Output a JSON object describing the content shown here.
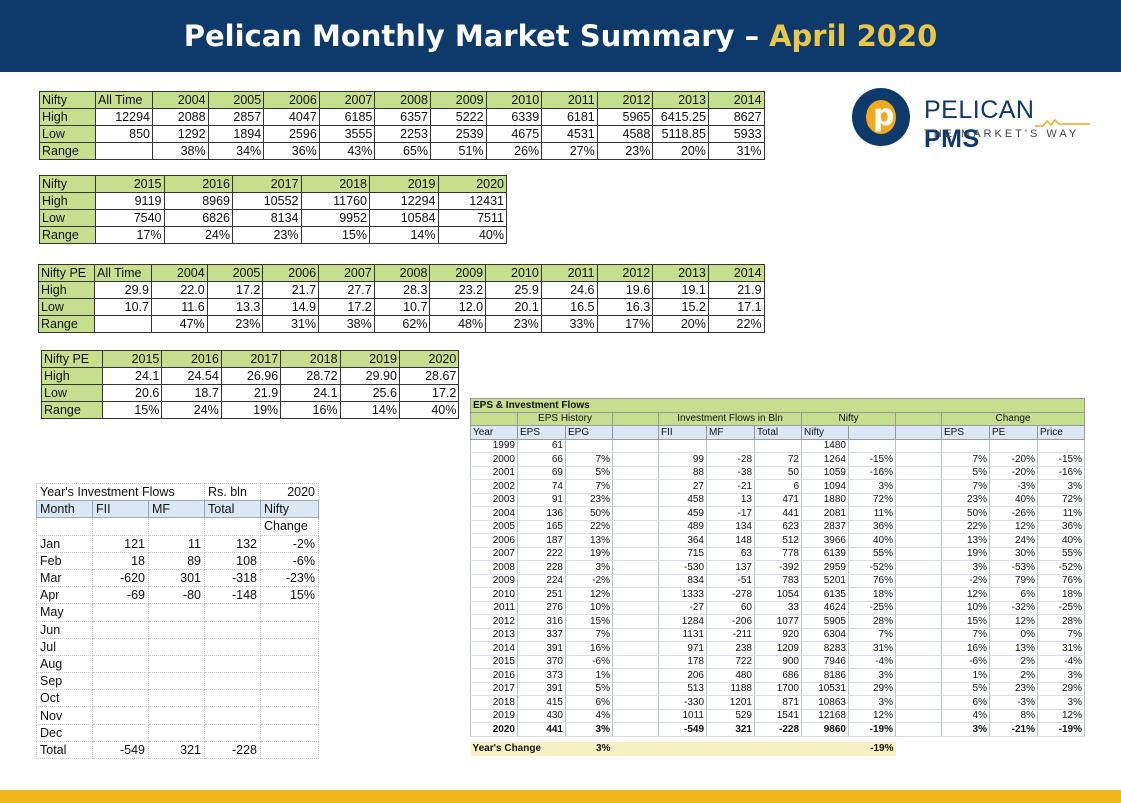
{
  "header": {
    "title": "Pelican Monthly Market Summary –",
    "month": "April 2020"
  },
  "logo": {
    "letter": "p",
    "brand_a": "PELICAN ",
    "brand_b": "PMS",
    "tagline": "THE MARKET'S WAY"
  },
  "colors": {
    "navy": "#0d3a6b",
    "gold": "#f1b81b",
    "green_header": "#c6df8e",
    "blue_header": "#dbe7f5"
  },
  "nifty_a": {
    "header": [
      "Nifty",
      "All Time",
      "2004",
      "2005",
      "2006",
      "2007",
      "2008",
      "2009",
      "2010",
      "2011",
      "2012",
      "2013",
      "2014"
    ],
    "rows": [
      [
        "High",
        "12294",
        "2088",
        "2857",
        "4047",
        "6185",
        "6357",
        "5222",
        "6339",
        "6181",
        "5965",
        "6415.25",
        "8627"
      ],
      [
        "Low",
        "850",
        "1292",
        "1894",
        "2596",
        "3555",
        "2253",
        "2539",
        "4675",
        "4531",
        "4588",
        "5118.85",
        "5933"
      ],
      [
        "Range",
        "",
        "38%",
        "34%",
        "36%",
        "43%",
        "65%",
        "51%",
        "26%",
        "27%",
        "23%",
        "20%",
        "31%"
      ]
    ]
  },
  "nifty_b": {
    "header": [
      "Nifty",
      "2015",
      "2016",
      "2017",
      "2018",
      "2019",
      "2020"
    ],
    "rows": [
      [
        "High",
        "9119",
        "8969",
        "10552",
        "11760",
        "12294",
        "12431"
      ],
      [
        "Low",
        "7540",
        "6826",
        "8134",
        "9952",
        "10584",
        "7511"
      ],
      [
        "Range",
        "17%",
        "24%",
        "23%",
        "15%",
        "14%",
        "40%"
      ]
    ]
  },
  "pe_a": {
    "header": [
      "Nifty PE",
      "All Time",
      "2004",
      "2005",
      "2006",
      "2007",
      "2008",
      "2009",
      "2010",
      "2011",
      "2012",
      "2013",
      "2014"
    ],
    "rows": [
      [
        "High",
        "29.9",
        "22.0",
        "17.2",
        "21.7",
        "27.7",
        "28.3",
        "23.2",
        "25.9",
        "24.6",
        "19.6",
        "19.1",
        "21.9"
      ],
      [
        "Low",
        "10.7",
        "11.6",
        "13.3",
        "14.9",
        "17.2",
        "10.7",
        "12.0",
        "20.1",
        "16.5",
        "16.3",
        "15.2",
        "17.1"
      ],
      [
        "Range",
        "",
        "47%",
        "23%",
        "31%",
        "38%",
        "62%",
        "48%",
        "23%",
        "33%",
        "17%",
        "20%",
        "22%"
      ]
    ]
  },
  "pe_b": {
    "header": [
      "Nifty PE",
      "2015",
      "2016",
      "2017",
      "2018",
      "2019",
      "2020"
    ],
    "rows": [
      [
        "High",
        "24.1",
        "24.54",
        "26.96",
        "28.72",
        "29.90",
        "28.67"
      ],
      [
        "Low",
        "20.6",
        "18.7",
        "21.9",
        "24.1",
        "25.6",
        "17.2"
      ],
      [
        "Range",
        "15%",
        "24%",
        "19%",
        "16%",
        "14%",
        "40%"
      ]
    ]
  },
  "flows": {
    "title_row": [
      "Year's Investment Flows",
      "",
      "",
      "Rs. bln",
      "2020"
    ],
    "header": [
      "Month",
      "FII",
      "MF",
      "Total",
      "Nifty"
    ],
    "header2": [
      "",
      "",
      "",
      "",
      "Change"
    ],
    "rows": [
      [
        "Jan",
        "121",
        "11",
        "132",
        "-2%"
      ],
      [
        "Feb",
        "18",
        "89",
        "108",
        "-6%"
      ],
      [
        "Mar",
        "-620",
        "301",
        "-318",
        "-23%"
      ],
      [
        "Apr",
        "-69",
        "-80",
        "-148",
        "15%"
      ],
      [
        "May",
        "",
        "",
        "",
        ""
      ],
      [
        "Jun",
        "",
        "",
        "",
        ""
      ],
      [
        "Jul",
        "",
        "",
        "",
        ""
      ],
      [
        "Aug",
        "",
        "",
        "",
        ""
      ],
      [
        "Sep",
        "",
        "",
        "",
        ""
      ],
      [
        "Oct",
        "",
        "",
        "",
        ""
      ],
      [
        "Nov",
        "",
        "",
        "",
        ""
      ],
      [
        "Dec",
        "",
        "",
        "",
        ""
      ],
      [
        "Total",
        "-549",
        "321",
        "-228",
        ""
      ]
    ]
  },
  "eps": {
    "title": "EPS & Investment Flows",
    "group_headers": {
      "eps_history": "EPS History",
      "inv_flows": "Investment Flows in Bln",
      "nifty": "Nifty",
      "change": "Change"
    },
    "col_headers": [
      "Year",
      "EPS",
      "EPG",
      "",
      "FII",
      "MF",
      "Total",
      "Nifty",
      "",
      "",
      "EPS",
      "PE",
      "Price"
    ],
    "rows": [
      [
        "1999",
        "61",
        "",
        "",
        "",
        "",
        "",
        "1480",
        "",
        "",
        "",
        "",
        ""
      ],
      [
        "2000",
        "66",
        "7%",
        "",
        "99",
        "-28",
        "72",
        "1264",
        "-15%",
        "",
        "7%",
        "-20%",
        "-15%"
      ],
      [
        "2001",
        "69",
        "5%",
        "",
        "88",
        "-38",
        "50",
        "1059",
        "-16%",
        "",
        "5%",
        "-20%",
        "-16%"
      ],
      [
        "2002",
        "74",
        "7%",
        "",
        "27",
        "-21",
        "6",
        "1094",
        "3%",
        "",
        "7%",
        "-3%",
        "3%"
      ],
      [
        "2003",
        "91",
        "23%",
        "",
        "458",
        "13",
        "471",
        "1880",
        "72%",
        "",
        "23%",
        "40%",
        "72%"
      ],
      [
        "2004",
        "136",
        "50%",
        "",
        "459",
        "-17",
        "441",
        "2081",
        "11%",
        "",
        "50%",
        "-26%",
        "11%"
      ],
      [
        "2005",
        "165",
        "22%",
        "",
        "489",
        "134",
        "623",
        "2837",
        "36%",
        "",
        "22%",
        "12%",
        "36%"
      ],
      [
        "2006",
        "187",
        "13%",
        "",
        "364",
        "148",
        "512",
        "3966",
        "40%",
        "",
        "13%",
        "24%",
        "40%"
      ],
      [
        "2007",
        "222",
        "19%",
        "",
        "715",
        "63",
        "778",
        "6139",
        "55%",
        "",
        "19%",
        "30%",
        "55%"
      ],
      [
        "2008",
        "228",
        "3%",
        "",
        "-530",
        "137",
        "-392",
        "2959",
        "-52%",
        "",
        "3%",
        "-53%",
        "-52%"
      ],
      [
        "2009",
        "224",
        "-2%",
        "",
        "834",
        "-51",
        "783",
        "5201",
        "76%",
        "",
        "-2%",
        "79%",
        "76%"
      ],
      [
        "2010",
        "251",
        "12%",
        "",
        "1333",
        "-278",
        "1054",
        "6135",
        "18%",
        "",
        "12%",
        "6%",
        "18%"
      ],
      [
        "2011",
        "276",
        "10%",
        "",
        "-27",
        "60",
        "33",
        "4624",
        "-25%",
        "",
        "10%",
        "-32%",
        "-25%"
      ],
      [
        "2012",
        "316",
        "15%",
        "",
        "1284",
        "-206",
        "1077",
        "5905",
        "28%",
        "",
        "15%",
        "12%",
        "28%"
      ],
      [
        "2013",
        "337",
        "7%",
        "",
        "1131",
        "-211",
        "920",
        "6304",
        "7%",
        "",
        "7%",
        "0%",
        "7%"
      ],
      [
        "2014",
        "391",
        "16%",
        "",
        "971",
        "238",
        "1209",
        "8283",
        "31%",
        "",
        "16%",
        "13%",
        "31%"
      ],
      [
        "2015",
        "370",
        "-6%",
        "",
        "178",
        "722",
        "900",
        "7946",
        "-4%",
        "",
        "-6%",
        "2%",
        "-4%"
      ],
      [
        "2016",
        "373",
        "1%",
        "",
        "206",
        "480",
        "686",
        "8186",
        "3%",
        "",
        "1%",
        "2%",
        "3%"
      ],
      [
        "2017",
        "391",
        "5%",
        "",
        "513",
        "1188",
        "1700",
        "10531",
        "29%",
        "",
        "5%",
        "23%",
        "29%"
      ],
      [
        "2018",
        "415",
        "6%",
        "",
        "-330",
        "1201",
        "871",
        "10863",
        "3%",
        "",
        "6%",
        "-3%",
        "3%"
      ],
      [
        "2019",
        "430",
        "4%",
        "",
        "1011",
        "529",
        "1541",
        "12168",
        "12%",
        "",
        "4%",
        "8%",
        "12%"
      ],
      [
        "2020",
        "441",
        "3%",
        "",
        "-549",
        "321",
        "-228",
        "9860",
        "-19%",
        "",
        "3%",
        "-21%",
        "-19%"
      ]
    ],
    "years_change": {
      "label": "Year's Change",
      "epg": "3%",
      "nifty": "-19%"
    }
  }
}
